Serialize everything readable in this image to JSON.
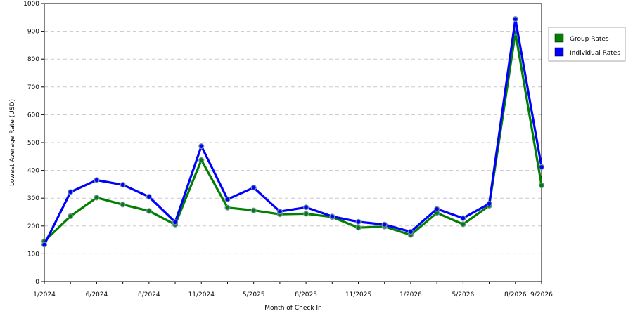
{
  "chart_data": {
    "type": "line",
    "title": "",
    "xlabel": "Month of Check In",
    "ylabel": "Lowest Average Rate (USD)",
    "ylim": [
      0,
      1000
    ],
    "yticks": [
      0,
      100,
      200,
      300,
      400,
      500,
      600,
      700,
      800,
      900,
      1000
    ],
    "x_tick_labels": [
      "1/2024",
      "6/2024",
      "8/2024",
      "11/2024",
      "5/2025",
      "8/2025",
      "11/2025",
      "1/2026",
      "5/2026",
      "8/2026",
      "9/2026"
    ],
    "grid": true,
    "legend_position": "top-right",
    "series": [
      {
        "name": "Group Rates",
        "color": "#008000",
        "values": [
          145,
          235,
          302,
          277,
          254,
          205,
          437,
          266,
          256,
          242,
          244,
          232,
          194,
          198,
          168,
          247,
          206,
          273,
          895,
          346
        ]
      },
      {
        "name": "Individual Rates",
        "color": "#0000ff",
        "values": [
          133,
          322,
          365,
          348,
          305,
          214,
          487,
          296,
          338,
          252,
          267,
          234,
          215,
          205,
          179,
          261,
          228,
          280,
          944,
          412
        ]
      }
    ]
  }
}
